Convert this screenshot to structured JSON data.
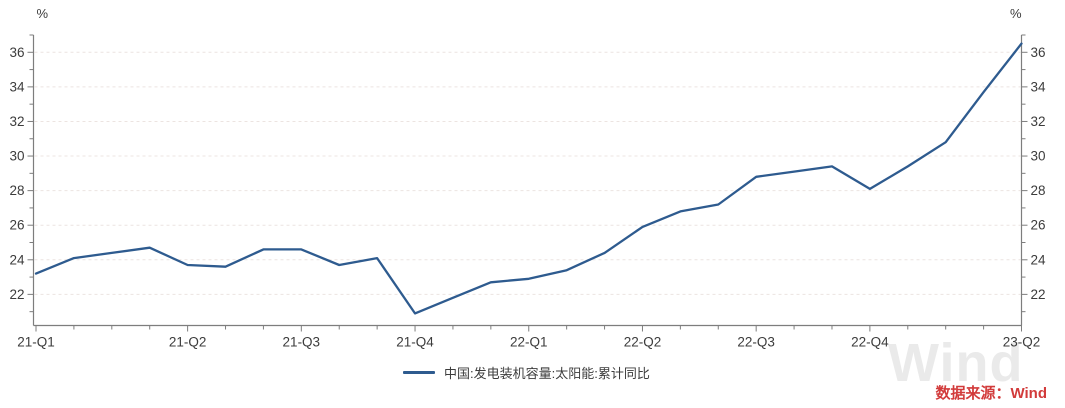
{
  "axis_units": {
    "left": "%",
    "right": "%"
  },
  "legend": {
    "label": "中国:发电装机容量:太阳能:累计同比",
    "swatch_color": "#2e5b8f"
  },
  "source": {
    "text": "数据来源：Wind",
    "color": "#d23b3b"
  },
  "watermark": {
    "text": "Wind"
  },
  "chart_data": {
    "type": "line",
    "title": "",
    "ylabel": "%",
    "grid": "horizontal-dashed",
    "legend_position": "bottom-center",
    "y_axis": {
      "labeled_ticks": [
        22,
        24,
        26,
        28,
        30,
        32,
        34,
        36
      ],
      "minor_tick_step": 1,
      "range_min": 21,
      "range_max": 37,
      "unit": "%"
    },
    "x_tick_labels": [
      "21-Q1",
      "21-Q2",
      "21-Q3",
      "21-Q4",
      "22-Q1",
      "22-Q2",
      "22-Q3",
      "22-Q4",
      "23-Q2"
    ],
    "x_tick_point_indices": [
      0,
      4,
      7,
      10,
      13,
      16,
      19,
      22,
      26
    ],
    "series": [
      {
        "name": "中国:发电装机容量:太阳能:累计同比",
        "color": "#2e5b8f",
        "values": [
          23.2,
          24.1,
          24.4,
          24.7,
          23.7,
          23.6,
          24.6,
          24.6,
          23.7,
          24.1,
          20.9,
          21.8,
          22.7,
          22.9,
          23.4,
          24.4,
          25.9,
          26.8,
          27.2,
          28.8,
          29.1,
          29.4,
          28.1,
          29.4,
          30.8,
          33.7,
          36.5
        ]
      }
    ]
  }
}
